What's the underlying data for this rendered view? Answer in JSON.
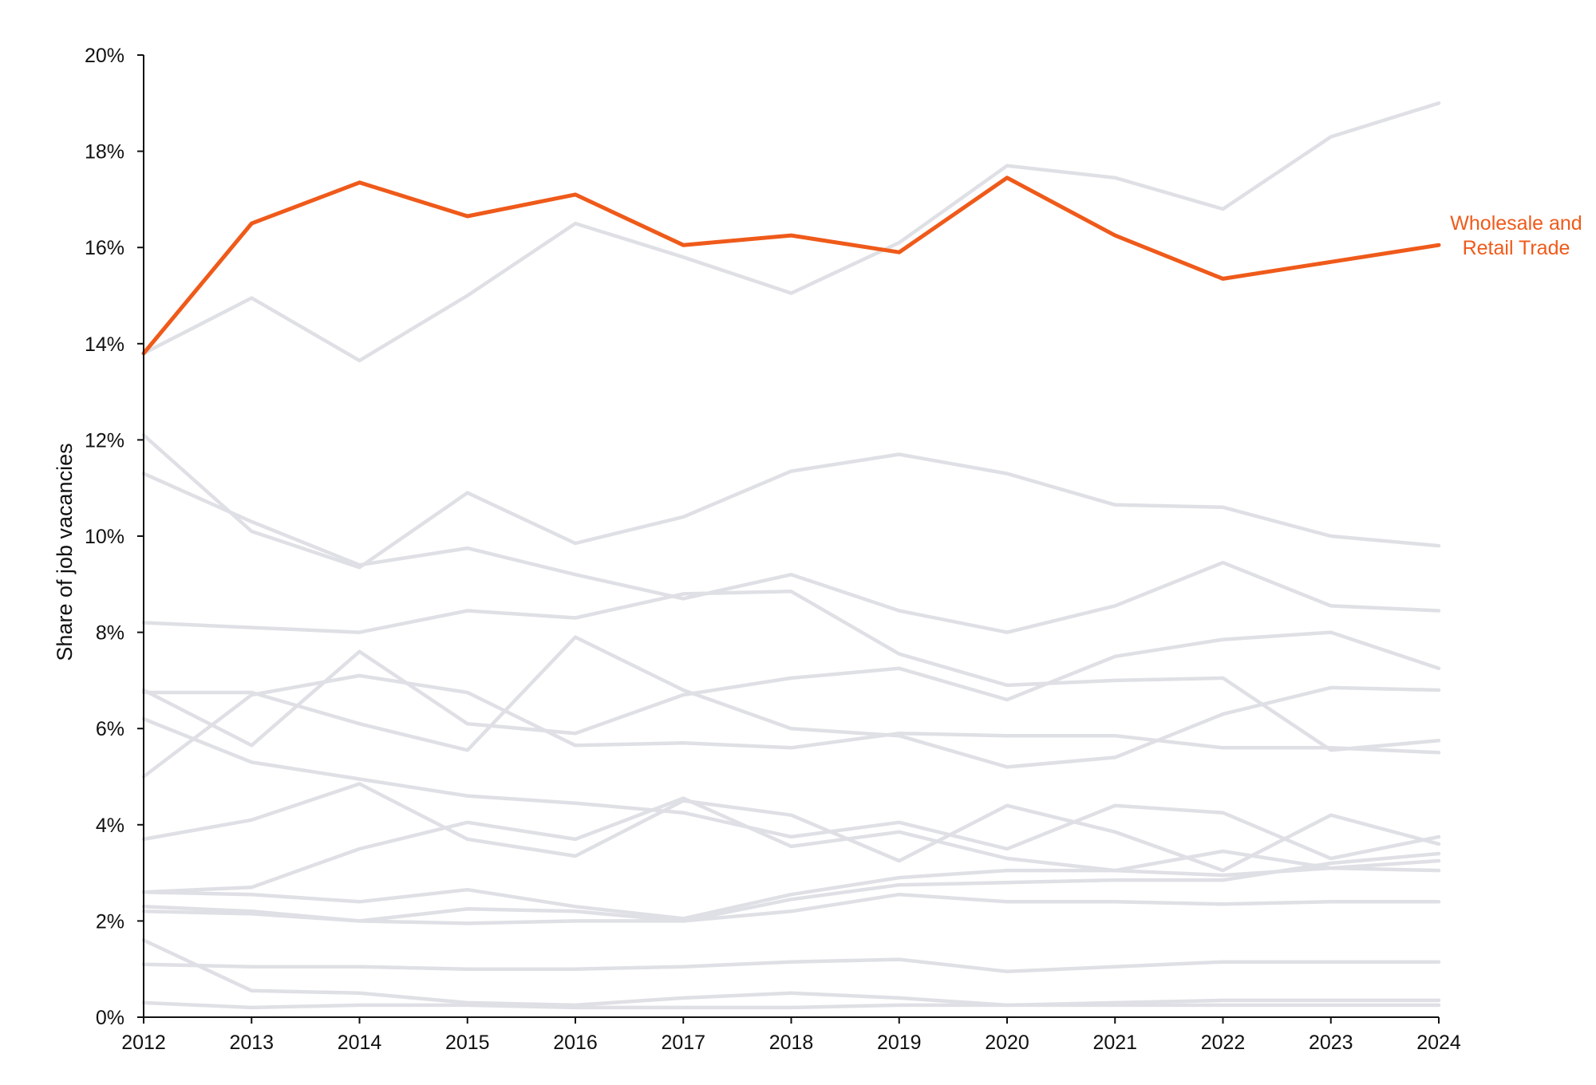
{
  "chart_data": {
    "type": "line",
    "title": "",
    "xlabel": "",
    "ylabel": "Share of job vacancies",
    "x": [
      2012,
      2013,
      2014,
      2015,
      2016,
      2017,
      2018,
      2019,
      2020,
      2021,
      2022,
      2023,
      2024
    ],
    "xlim": [
      2012,
      2024
    ],
    "ylim": [
      0,
      20
    ],
    "y_ticks": [
      0,
      2,
      4,
      6,
      8,
      10,
      12,
      14,
      16,
      18,
      20
    ],
    "y_tick_labels": [
      "0%",
      "2%",
      "4%",
      "6%",
      "8%",
      "10%",
      "12%",
      "14%",
      "16%",
      "18%",
      "20%"
    ],
    "x_tick_labels": [
      "2012",
      "2013",
      "2014",
      "2015",
      "2016",
      "2017",
      "2018",
      "2019",
      "2020",
      "2021",
      "2022",
      "2023",
      "2024"
    ],
    "grid": false,
    "highlight_color": "#ef5a1a",
    "background_series_color": "#dfe0e5",
    "axis_color": "#111111",
    "highlight_label_lines": [
      "Wholesale and",
      "Retail Trade"
    ],
    "series": [
      {
        "highlight": false,
        "values": [
          13.8,
          14.95,
          13.65,
          15.0,
          16.5,
          15.8,
          15.05,
          16.1,
          17.7,
          17.45,
          16.8,
          18.3,
          19.0
        ]
      },
      {
        "highlight": false,
        "values": [
          11.3,
          10.3,
          9.4,
          9.75,
          9.2,
          8.7,
          9.2,
          8.45,
          8.0,
          8.55,
          9.45,
          8.55,
          8.45
        ]
      },
      {
        "highlight": false,
        "values": [
          12.1,
          10.1,
          9.35,
          10.9,
          9.85,
          10.4,
          11.35,
          11.7,
          11.3,
          10.65,
          10.6,
          10.0,
          9.8
        ]
      },
      {
        "highlight": false,
        "values": [
          8.2,
          8.1,
          8.0,
          8.45,
          8.3,
          8.8,
          8.85,
          7.55,
          6.9,
          7.0,
          7.05,
          5.55,
          5.75
        ]
      },
      {
        "highlight": false,
        "values": [
          6.8,
          5.65,
          7.6,
          6.1,
          5.9,
          6.7,
          7.05,
          7.25,
          6.6,
          7.5,
          7.85,
          8.0,
          7.25
        ]
      },
      {
        "highlight": false,
        "values": [
          6.75,
          6.75,
          6.1,
          5.55,
          7.9,
          6.8,
          6.0,
          5.85,
          5.2,
          5.4,
          6.3,
          6.85,
          6.8
        ]
      },
      {
        "highlight": false,
        "values": [
          5.0,
          6.7,
          7.1,
          6.75,
          5.65,
          5.7,
          5.6,
          5.9,
          5.85,
          5.85,
          5.6,
          5.6,
          5.5
        ]
      },
      {
        "highlight": false,
        "values": [
          6.2,
          5.3,
          4.95,
          4.6,
          4.45,
          4.25,
          3.75,
          4.05,
          3.5,
          4.4,
          4.25,
          3.3,
          3.75
        ]
      },
      {
        "highlight": false,
        "values": [
          3.7,
          4.1,
          4.85,
          3.7,
          3.35,
          4.5,
          4.2,
          3.25,
          4.4,
          3.85,
          3.05,
          4.2,
          3.6
        ]
      },
      {
        "highlight": false,
        "values": [
          2.6,
          2.7,
          3.5,
          4.05,
          3.7,
          4.55,
          3.55,
          3.85,
          3.3,
          3.05,
          3.45,
          3.1,
          3.25
        ]
      },
      {
        "highlight": false,
        "values": [
          2.6,
          2.55,
          2.4,
          2.65,
          2.3,
          2.05,
          2.55,
          2.9,
          3.05,
          3.05,
          2.95,
          3.1,
          3.05
        ]
      },
      {
        "highlight": false,
        "values": [
          2.3,
          2.2,
          2.0,
          2.25,
          2.2,
          2.0,
          2.45,
          2.75,
          2.8,
          2.85,
          2.85,
          3.2,
          3.4
        ]
      },
      {
        "highlight": false,
        "values": [
          2.2,
          2.15,
          2.0,
          1.95,
          2.0,
          2.0,
          2.2,
          2.55,
          2.4,
          2.4,
          2.35,
          2.4,
          2.4
        ]
      },
      {
        "highlight": false,
        "values": [
          1.1,
          1.05,
          1.05,
          1.0,
          1.0,
          1.05,
          1.15,
          1.2,
          0.95,
          1.05,
          1.15,
          1.15,
          1.15
        ]
      },
      {
        "highlight": false,
        "values": [
          1.6,
          0.55,
          0.5,
          0.3,
          0.25,
          0.4,
          0.5,
          0.4,
          0.25,
          0.3,
          0.35,
          0.35,
          0.35
        ]
      },
      {
        "highlight": false,
        "values": [
          0.3,
          0.2,
          0.25,
          0.25,
          0.2,
          0.2,
          0.2,
          0.25,
          0.25,
          0.25,
          0.25,
          0.25,
          0.25
        ]
      },
      {
        "highlight": true,
        "values": [
          13.8,
          16.5,
          17.35,
          16.65,
          17.1,
          16.05,
          16.25,
          15.9,
          17.45,
          16.25,
          15.35,
          15.7,
          16.05
        ]
      }
    ]
  }
}
